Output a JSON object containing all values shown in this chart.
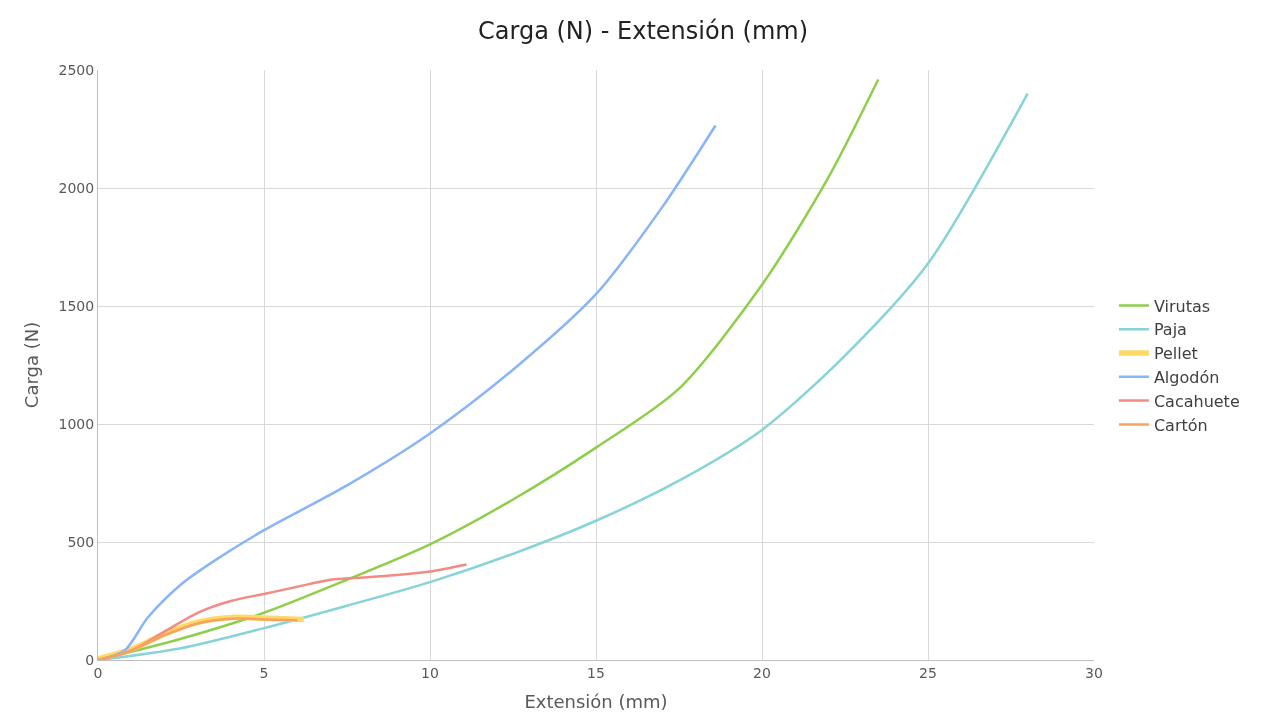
{
  "chart_data": {
    "type": "line",
    "title": "Carga (N) - Extensión (mm)",
    "xlabel": "Extensión (mm)",
    "ylabel": "Carga (N)",
    "xlim": [
      0,
      30
    ],
    "xticks": [
      0,
      5,
      10,
      15,
      20,
      25,
      30
    ],
    "ylim": [
      0,
      2500
    ],
    "yticks": [
      0,
      500,
      1000,
      1500,
      2000,
      2500
    ],
    "grid": true,
    "legend": "right",
    "marker": "none",
    "line_style": "solid",
    "series": [
      {
        "name": "Virutas",
        "color": "#8fce4b",
        "x": [
          0,
          2.5,
          5,
          7.5,
          10,
          12.5,
          15,
          17.5,
          20,
          22,
          23.5
        ],
        "values": [
          0,
          90,
          200,
          340,
          490,
          680,
          900,
          1150,
          1590,
          2045,
          2460
        ]
      },
      {
        "name": "Paja",
        "color": "#86d3d8",
        "x": [
          0,
          2.5,
          5,
          7.5,
          10,
          12.5,
          15,
          17.5,
          20,
          22.5,
          25,
          28
        ],
        "values": [
          0,
          50,
          135,
          230,
          330,
          450,
          590,
          760,
          975,
          1290,
          1680,
          2400
        ]
      },
      {
        "name": "Pellet",
        "color": "#ffd966",
        "x": [
          0,
          1,
          2,
          3,
          4,
          5,
          6.2
        ],
        "values": [
          5,
          45,
          110,
          160,
          180,
          178,
          172
        ]
      },
      {
        "name": "Algodón",
        "color": "#8ab4f8",
        "x": [
          0,
          0.8,
          1.5,
          2.5,
          3.5,
          5,
          7.5,
          10,
          12.5,
          15,
          17,
          18.6
        ],
        "values": [
          0,
          40,
          180,
          320,
          420,
          550,
          740,
          960,
          1230,
          1550,
          1920,
          2265
        ]
      },
      {
        "name": "Cacahuete",
        "color": "#f28b82",
        "x": [
          0,
          1,
          2,
          3,
          4,
          5,
          6,
          7,
          8,
          9,
          10,
          11.1
        ],
        "values": [
          0,
          40,
          120,
          200,
          250,
          280,
          310,
          340,
          350,
          360,
          375,
          405
        ]
      },
      {
        "name": "Cartón",
        "color": "#f9a15e",
        "x": [
          0,
          1,
          2,
          3,
          4,
          5,
          6
        ],
        "values": [
          0,
          40,
          105,
          155,
          175,
          172,
          168
        ]
      }
    ]
  }
}
